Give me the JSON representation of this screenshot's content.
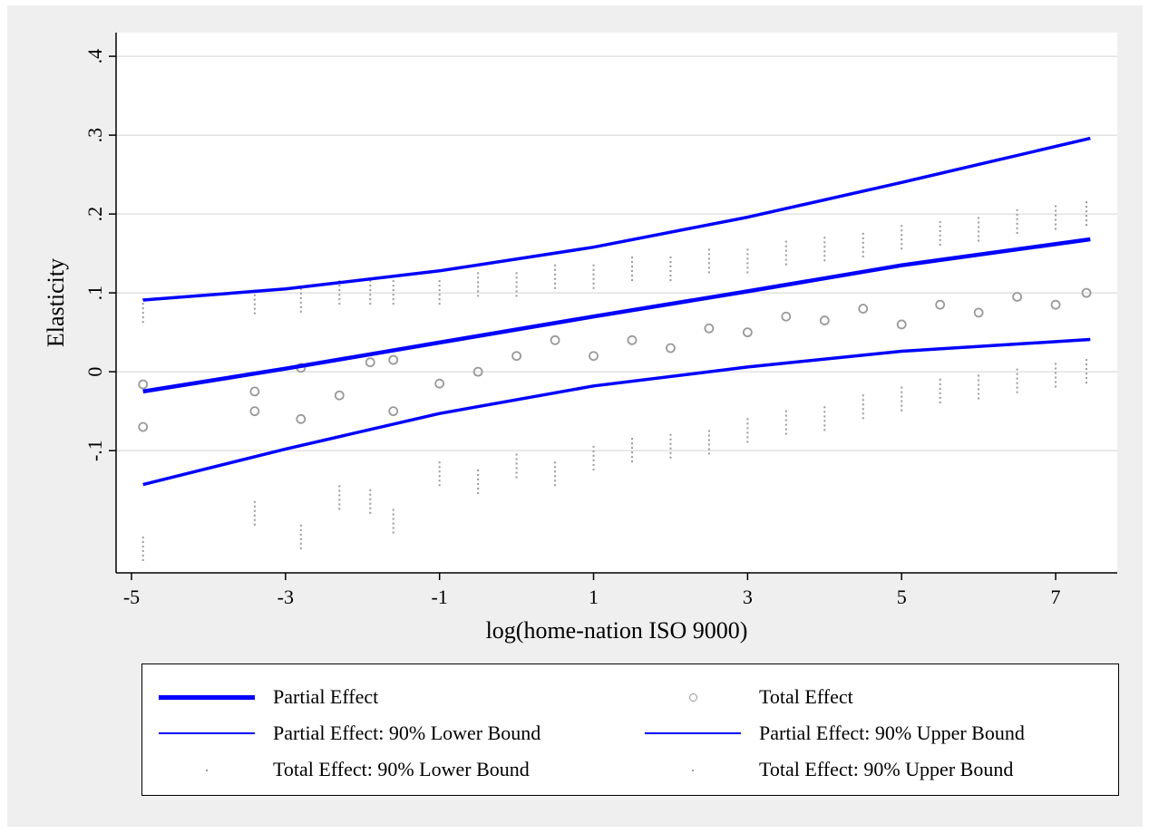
{
  "colors": {
    "partial": "#0000ff",
    "total": "#999999",
    "grid": "#dcdcdc",
    "figure_bg": "#efefef"
  },
  "legend": [
    {
      "label": "Partial Effect",
      "style": "thick-line"
    },
    {
      "label": "Total Effect",
      "style": "circle"
    },
    {
      "label": "Partial Effect: 90% Lower Bound",
      "style": "thin-line"
    },
    {
      "label": "Partial Effect: 90% Upper Bound",
      "style": "thin-line"
    },
    {
      "label": "Total Effect: 90% Lower Bound",
      "style": "dot"
    },
    {
      "label": "Total Effect: 90% Upper Bound",
      "style": "dot"
    }
  ],
  "chart_data": {
    "type": "line",
    "xlabel": "log(home-nation ISO 9000)",
    "ylabel": "Elasticity",
    "xlim": [
      -5.2,
      7.8
    ],
    "ylim": [
      -0.255,
      0.43
    ],
    "x_ticks": [
      -5,
      -3,
      -1,
      1,
      3,
      5,
      7
    ],
    "x_tick_labels": [
      "-5",
      "-3",
      "-1",
      "1",
      "3",
      "5",
      "7"
    ],
    "y_ticks": [
      -0.1,
      0,
      0.1,
      0.2,
      0.3,
      0.4
    ],
    "y_tick_labels": [
      "-.1",
      "0",
      ".1",
      ".2",
      ".3",
      ".4"
    ],
    "grid": "horizontal",
    "legend_position": "bottom",
    "series": [
      {
        "name": "Partial Effect",
        "x": [
          -4.85,
          -3,
          -1,
          1,
          3,
          5,
          7.45
        ],
        "y": [
          -0.025,
          0.004,
          0.037,
          0.07,
          0.102,
          0.135,
          0.168
        ]
      },
      {
        "name": "Partial Effect: 90% Lower Bound",
        "x": [
          -4.85,
          -3,
          -1,
          1,
          3,
          5,
          7.45
        ],
        "y": [
          -0.143,
          -0.098,
          -0.053,
          -0.018,
          0.006,
          0.026,
          0.041
        ]
      },
      {
        "name": "Partial Effect: 90% Upper Bound",
        "x": [
          -4.85,
          -3,
          -1,
          1,
          3,
          5,
          7.45
        ],
        "y": [
          0.091,
          0.105,
          0.128,
          0.158,
          0.196,
          0.24,
          0.296
        ]
      },
      {
        "name": "Total Effect",
        "x": [
          -4.85,
          -4.85,
          -3.4,
          -3.4,
          -2.8,
          -2.8,
          -2.3,
          -1.9,
          -1.6,
          -1.6,
          -1.0,
          -0.5,
          0.0,
          0.5,
          1.0,
          1.5,
          2.0,
          2.5,
          3.0,
          3.5,
          4.0,
          4.5,
          5.0,
          5.5,
          6.0,
          6.5,
          7.0,
          7.4
        ],
        "y": [
          -0.07,
          -0.016,
          -0.05,
          -0.025,
          -0.06,
          0.005,
          -0.03,
          0.012,
          -0.05,
          0.015,
          -0.015,
          0.0,
          0.02,
          0.04,
          0.02,
          0.04,
          0.03,
          0.055,
          0.05,
          0.07,
          0.065,
          0.08,
          0.06,
          0.085,
          0.075,
          0.095,
          0.085,
          0.1
        ]
      },
      {
        "name": "Total Effect: 90% Lower Bound",
        "x": [
          -4.85,
          -3.4,
          -2.8,
          -2.3,
          -1.9,
          -1.6,
          -1.0,
          -0.5,
          0.0,
          0.5,
          1.0,
          1.5,
          2.0,
          2.5,
          3.0,
          3.5,
          4.0,
          4.5,
          5.0,
          5.5,
          6.0,
          6.5,
          7.0,
          7.4
        ],
        "y": [
          -0.225,
          -0.18,
          -0.21,
          -0.16,
          -0.165,
          -0.19,
          -0.13,
          -0.14,
          -0.12,
          -0.13,
          -0.11,
          -0.1,
          -0.095,
          -0.09,
          -0.075,
          -0.065,
          -0.06,
          -0.045,
          -0.035,
          -0.025,
          -0.02,
          -0.012,
          -0.005,
          0.0
        ]
      },
      {
        "name": "Total Effect: 90% Upper Bound",
        "x": [
          -4.85,
          -3.4,
          -2.8,
          -2.3,
          -1.9,
          -1.6,
          -1.0,
          -0.5,
          0.0,
          0.5,
          1.0,
          1.5,
          2.0,
          2.5,
          3.0,
          3.5,
          4.0,
          4.5,
          5.0,
          5.5,
          6.0,
          6.5,
          7.0,
          7.4
        ],
        "y": [
          0.077,
          0.088,
          0.09,
          0.1,
          0.1,
          0.1,
          0.1,
          0.11,
          0.11,
          0.12,
          0.12,
          0.13,
          0.13,
          0.14,
          0.14,
          0.15,
          0.155,
          0.16,
          0.17,
          0.175,
          0.18,
          0.19,
          0.195,
          0.2
        ]
      }
    ]
  }
}
